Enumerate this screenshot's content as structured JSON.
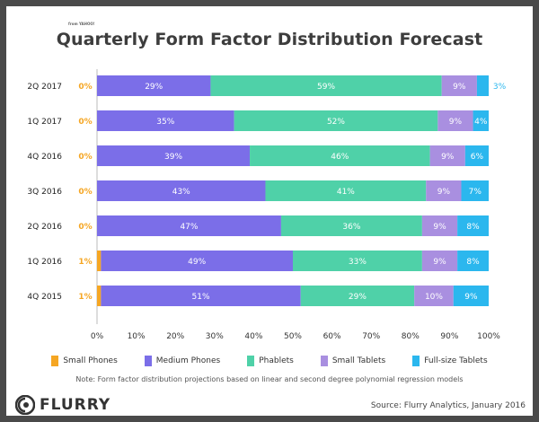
{
  "chart_data": {
    "type": "bar",
    "orientation": "horizontal",
    "stacked": true,
    "title": "Quarterly Form Factor Distribution Forecast",
    "categories": [
      "2Q 2017",
      "1Q 2017",
      "4Q 2016",
      "3Q 2016",
      "2Q 2016",
      "1Q 2016",
      "4Q 2015"
    ],
    "series": [
      {
        "name": "Small Phones",
        "color": "#f5a623",
        "values": [
          0,
          0,
          0,
          0,
          0,
          1,
          1
        ]
      },
      {
        "name": "Medium Phones",
        "color": "#7b6ee8",
        "values": [
          29,
          35,
          39,
          43,
          47,
          49,
          51
        ]
      },
      {
        "name": "Phablets",
        "color": "#4fd1a8",
        "values": [
          59,
          52,
          46,
          41,
          36,
          33,
          29
        ]
      },
      {
        "name": "Small Tablets",
        "color": "#a98fe0",
        "values": [
          9,
          9,
          9,
          9,
          9,
          9,
          10
        ]
      },
      {
        "name": "Full-size Tablets",
        "color": "#2bb7ee",
        "values": [
          3,
          4,
          6,
          7,
          8,
          8,
          9
        ]
      }
    ],
    "xlim": [
      0,
      100
    ],
    "xticks": [
      "0%",
      "10%",
      "20%",
      "30%",
      "40%",
      "50%",
      "60%",
      "70%",
      "80%",
      "90%",
      "100%"
    ],
    "legend_position": "bottom"
  },
  "note": "Note: Form factor distribution projections based on linear and second degree polynomial regression models",
  "source": "Source: Flurry Analytics, January 2016",
  "brand": {
    "name": "FLURRY",
    "sub": "from YAHOO!"
  }
}
